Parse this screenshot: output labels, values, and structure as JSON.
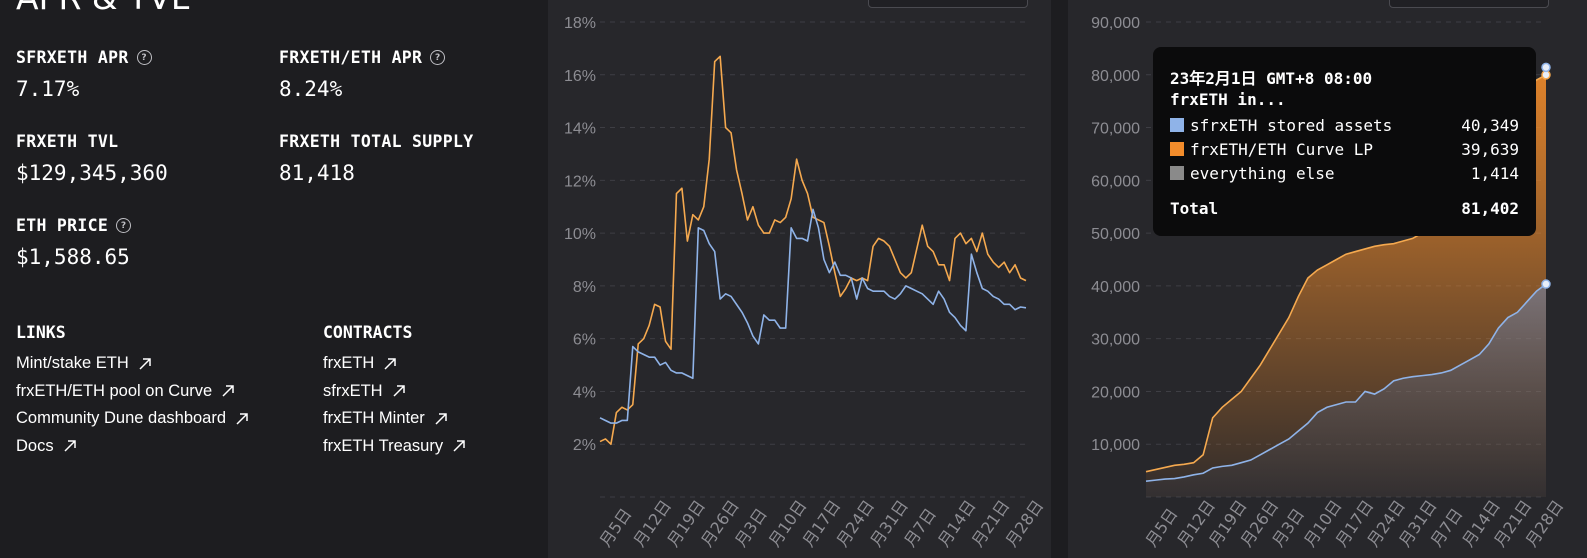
{
  "page_title": "APR & TVL",
  "stats": {
    "sfrxeth_apr": {
      "label": "SFRXETH APR",
      "value": "7.17%"
    },
    "frxeth_eth_apr": {
      "label": "FRXETH/ETH APR",
      "value": "8.24%"
    },
    "frxeth_tvl": {
      "label": "FRXETH TVL",
      "value": "$129,345,360"
    },
    "frxeth_total_supply": {
      "label": "FRXETH TOTAL SUPPLY",
      "value": "81,418"
    },
    "eth_price": {
      "label": "ETH PRICE",
      "value": "$1,588.65"
    }
  },
  "links": {
    "heading": "LINKS",
    "items": [
      "Mint/stake ETH",
      "frxETH/ETH pool on Curve",
      "Community Dune dashboard",
      "Docs"
    ]
  },
  "contracts": {
    "heading": "CONTRACTS",
    "items": [
      "frxETH",
      "sfrxETH",
      "frxETH Minter",
      "frxETH Treasury"
    ]
  },
  "icons": {
    "help": "help-circle-icon",
    "external": "external-link-arrow-icon"
  },
  "colors": {
    "sfrxeth": "#8fb3e8",
    "frxeth_eth": "#f5a94f",
    "curve_fill": "#f28c2b",
    "other": "#8a8a8a",
    "background": "#1d1d20",
    "panel": "#27272b"
  },
  "chart_data": [
    {
      "type": "line",
      "yticks": [
        "2%",
        "4%",
        "6%",
        "8%",
        "10%",
        "12%",
        "14%",
        "16%",
        "18%"
      ],
      "ylim": [
        0,
        18
      ],
      "xticks": [
        "月5日",
        "月12日",
        "月19日",
        "月26日",
        "月3日",
        "月10日",
        "月17日",
        "月24日",
        "月31日",
        "月7日",
        "月14日",
        "月21日",
        "月28日"
      ],
      "grid": true,
      "series": [
        {
          "color": "#f5a94f",
          "values": [
            2.1,
            2.2,
            2.0,
            3.2,
            3.4,
            3.3,
            3.5,
            5.8,
            6.0,
            6.5,
            7.3,
            7.2,
            5.9,
            5.6,
            11.5,
            11.7,
            9.7,
            10.7,
            10.5,
            11.0,
            12.8,
            16.5,
            16.7,
            14.0,
            13.8,
            12.4,
            11.5,
            10.5,
            11.0,
            10.3,
            10.0,
            10.0,
            10.5,
            10.4,
            10.6,
            11.3,
            12.8,
            12.0,
            11.5,
            10.6,
            10.5,
            10.4,
            9.5,
            8.5,
            7.6,
            7.9,
            8.3,
            8.2,
            8.3,
            8.2,
            9.5,
            9.8,
            9.7,
            9.5,
            9.0,
            8.5,
            8.3,
            8.5,
            9.4,
            10.3,
            9.5,
            9.3,
            8.8,
            8.8,
            8.2,
            9.8,
            10.0,
            9.6,
            9.8,
            9.3,
            10.0,
            9.2,
            8.9,
            8.7,
            8.9,
            8.5,
            8.8,
            8.3,
            8.2
          ]
        },
        {
          "color": "#8fb3e8",
          "values": [
            3.0,
            2.9,
            2.8,
            2.8,
            2.9,
            2.9,
            5.7,
            5.5,
            5.4,
            5.3,
            5.3,
            5.0,
            5.1,
            4.8,
            4.7,
            4.7,
            4.6,
            4.5,
            10.2,
            10.1,
            9.6,
            9.3,
            7.5,
            7.7,
            7.6,
            7.3,
            7.0,
            6.6,
            6.1,
            5.8,
            6.9,
            6.7,
            6.7,
            6.4,
            6.4,
            10.2,
            9.8,
            9.8,
            9.7,
            10.9,
            10.2,
            9.0,
            8.5,
            8.9,
            8.4,
            8.4,
            8.3,
            7.5,
            8.3,
            7.9,
            7.8,
            7.8,
            7.8,
            7.6,
            7.5,
            7.7,
            8.0,
            7.9,
            7.8,
            7.7,
            7.5,
            7.3,
            7.8,
            7.5,
            7.0,
            6.8,
            6.5,
            6.3,
            9.2,
            8.5,
            7.9,
            7.8,
            7.6,
            7.5,
            7.3,
            7.3,
            7.1,
            7.2,
            7.17
          ]
        }
      ]
    },
    {
      "type": "area",
      "yticks": [
        "10,000",
        "20,000",
        "30,000",
        "40,000",
        "50,000",
        "60,000",
        "70,000",
        "80,000",
        "90,000"
      ],
      "ylim": [
        0,
        90000
      ],
      "xticks": [
        "月5日",
        "月12日",
        "月19日",
        "月26日",
        "月3日",
        "月10日",
        "月17日",
        "月24日",
        "月31日",
        "月7日",
        "月14日",
        "月21日",
        "月28日"
      ],
      "grid": true,
      "series": [
        {
          "name": "sfrxETH stored assets",
          "color": "#8fb3e8",
          "values": [
            3000,
            3200,
            3400,
            3500,
            3800,
            4200,
            4500,
            5500,
            5800,
            6000,
            6500,
            7000,
            8000,
            9000,
            10000,
            11000,
            12500,
            14000,
            16000,
            17000,
            17500,
            18000,
            18000,
            20000,
            19500,
            20500,
            22000,
            22500,
            22800,
            23000,
            23200,
            23500,
            24000,
            25000,
            26000,
            27000,
            29000,
            32000,
            34000,
            35000,
            37000,
            39000,
            40349
          ]
        },
        {
          "name": "frxETH/ETH Curve LP",
          "color": "#f28c2b",
          "values": [
            4800,
            5200,
            5600,
            6000,
            6200,
            6500,
            8000,
            15000,
            17000,
            18500,
            20000,
            22500,
            25000,
            28000,
            31000,
            34000,
            38000,
            41500,
            43000,
            44000,
            45000,
            46000,
            46500,
            47000,
            47500,
            47800,
            48000,
            48500,
            49000,
            50000,
            51500,
            53000,
            54500,
            57000,
            60000,
            63000,
            66000,
            69000,
            72000,
            75000,
            77500,
            79000,
            79988
          ]
        }
      ]
    }
  ],
  "tooltip": {
    "date": "23年2月1日 GMT+8 08:00",
    "subtitle": "frxETH in...",
    "rows": [
      {
        "name": "sfrxETH stored assets",
        "value": "40,349",
        "color": "#8fb3e8"
      },
      {
        "name": "frxETH/ETH Curve LP",
        "value": "39,639",
        "color": "#f28c2b"
      },
      {
        "name": "everything else",
        "value": "1,414",
        "color": "#8a8a8a"
      }
    ],
    "total_label": "Total",
    "total_value": "81,402"
  }
}
